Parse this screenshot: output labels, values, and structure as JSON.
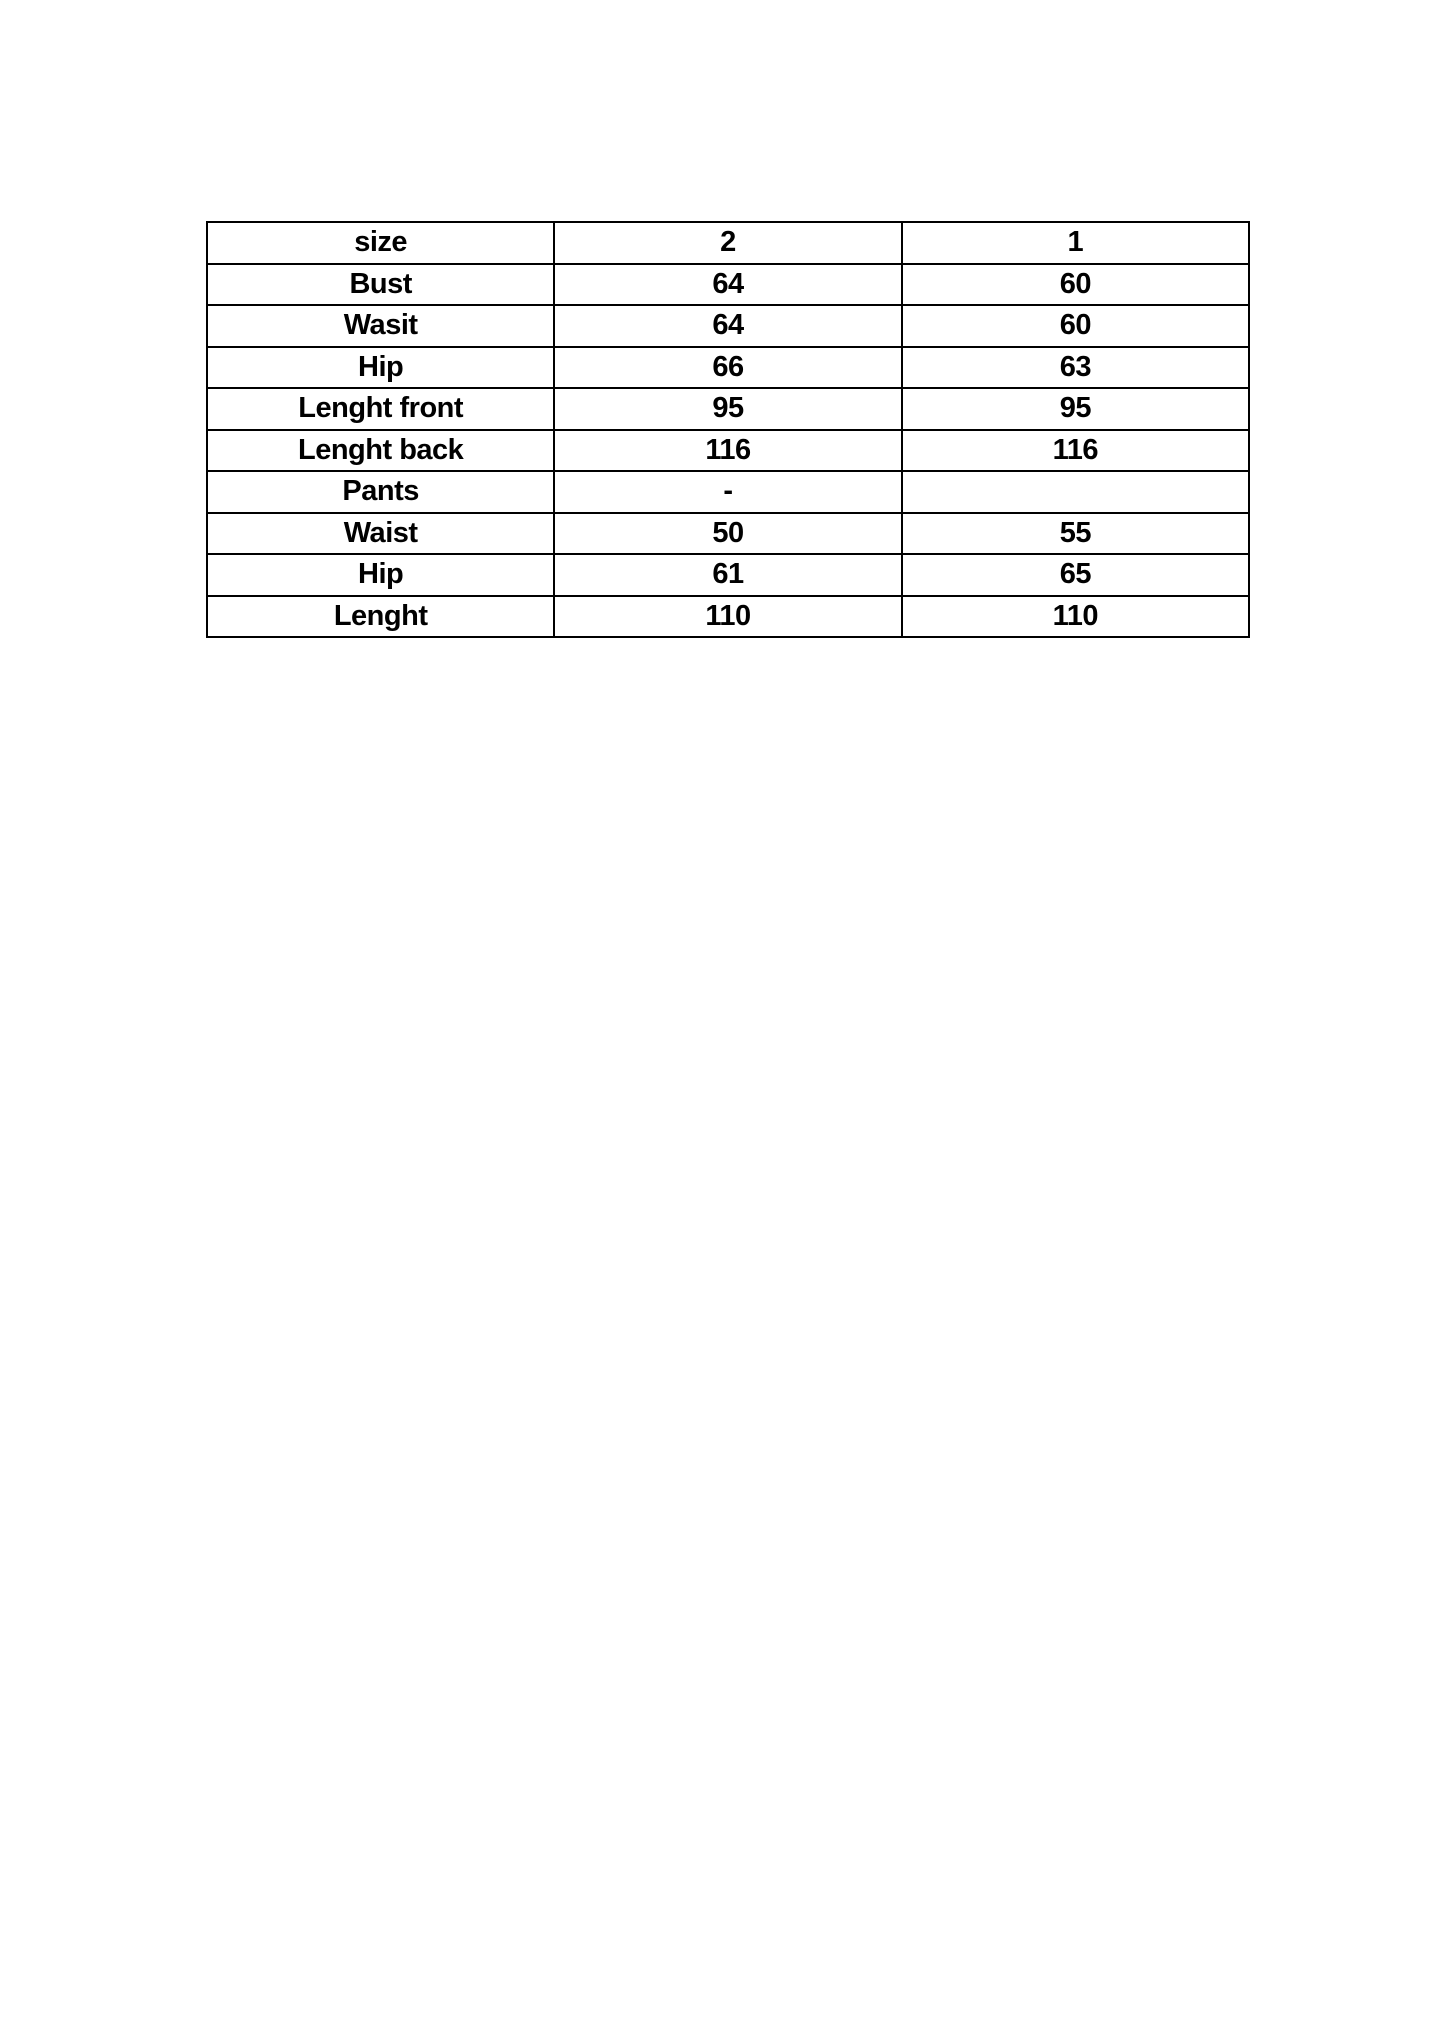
{
  "table": {
    "rows": [
      [
        "size",
        "2",
        "1"
      ],
      [
        "Bust",
        "64",
        "60"
      ],
      [
        "Wasit",
        "64",
        "60"
      ],
      [
        "Hip",
        "66",
        "63"
      ],
      [
        "Lenght front",
        "95",
        "95"
      ],
      [
        "Lenght back",
        "116",
        "116"
      ],
      [
        "Pants",
        "-",
        ""
      ],
      [
        "Waist",
        "50",
        "55"
      ],
      [
        "Hip",
        "61",
        "65"
      ],
      [
        "Lenght",
        "110",
        "110"
      ]
    ]
  }
}
